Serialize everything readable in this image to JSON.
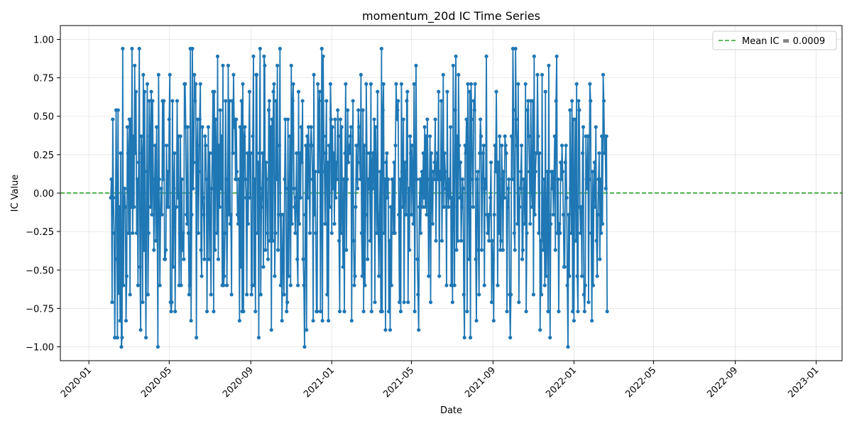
{
  "chart_data": {
    "type": "line",
    "title": "momentum_20d IC Time Series",
    "xlabel": "Date",
    "ylabel": "IC Value",
    "x_range": [
      "2019-11-19",
      "2023-02-09"
    ],
    "ylim": [
      -1.09,
      1.09
    ],
    "grid": true,
    "legend_position": "top-right",
    "x_ticks": [
      "2020-01",
      "2020-05",
      "2020-09",
      "2021-01",
      "2021-05",
      "2021-09",
      "2022-01",
      "2022-05",
      "2022-09",
      "2023-01"
    ],
    "y_ticks": [
      1.0,
      0.75,
      0.5,
      0.25,
      0.0,
      -0.25,
      -0.5,
      -0.75,
      -1.0
    ],
    "y_tick_labels": [
      "1.00",
      "0.75",
      "0.50",
      "0.25",
      "0.00",
      "−0.25",
      "−0.50",
      "−0.75",
      "−1.00"
    ],
    "series_color": "#1f77b4",
    "mean_line": {
      "label": "Mean IC = 0.0009",
      "value": 0.0009,
      "color": "#2ca02c"
    },
    "series": [
      {
        "start_date": "2020-02-03",
        "frequency": "daily",
        "values": [
          -0.03,
          0.09,
          -0.71,
          0.48,
          -0.03,
          -0.26,
          -0.94,
          -0.43,
          0.54,
          0.03,
          -0.94,
          0.54,
          -0.65,
          -0.09,
          -0.83,
          0.26,
          -1.0,
          -0.94,
          0.94,
          -0.6,
          -0.09,
          0.03,
          -0.09,
          -0.83,
          -0.54,
          0.43,
          0.26,
          -0.26,
          0.48,
          -0.66,
          0.48,
          -0.09,
          0.94,
          -0.26,
          0.37,
          -0.09,
          0.83,
          0.26,
          0.66,
          -0.26,
          0.09,
          -0.6,
          0.2,
          0.94,
          -0.48,
          -0.89,
          0.37,
          0.26,
          -0.71,
          0.77,
          -0.37,
          0.66,
          -0.37,
          -0.94,
          0.14,
          0.71,
          -0.66,
          -0.26,
          0.6,
          0.37,
          -0.09,
          0.66,
          -0.14,
          0.6,
          0.09,
          -0.37,
          0.03,
          0.31,
          -0.31,
          0.43,
          -0.14,
          -1.0,
          0.77,
          0.09,
          -0.6,
          -0.14,
          0.03,
          -0.14,
          0.6,
          0.09,
          0.6,
          -0.43,
          -0.43,
          -0.37,
          0.31,
          -0.09,
          0.14,
          -0.09,
          0.48,
          0.77,
          -0.71,
          -0.77,
          -0.71,
          0.6,
          -0.48,
          0.03,
          0.26,
          -0.77,
          -0.09,
          -0.09,
          0.6,
          -0.03,
          0.37,
          -0.6,
          -0.26,
          0.37,
          -0.6,
          0.09,
          -0.37,
          -0.26,
          -0.43,
          0.71,
          0.71,
          0.43,
          -0.14,
          -0.2,
          0.43,
          -0.26,
          -0.66,
          -0.6,
          0.94,
          -0.83,
          -0.14,
          0.94,
          0.03,
          0.2,
          0.77,
          0.6,
          0.71,
          -0.94,
          0.31,
          0.48,
          -0.26,
          0.14,
          0.48,
          0.71,
          -0.37,
          -0.54,
          0.43,
          -0.03,
          -0.14,
          -0.43,
          0.37,
          0.31,
          0.09,
          -0.77,
          -0.03,
          0.43,
          -0.43,
          0.26,
          -0.14,
          -0.66,
          0.03,
          0.26,
          0.66,
          -0.77,
          0.66,
          -0.37,
          0.48,
          0.2,
          -0.26,
          0.89,
          -0.43,
          0.31,
          -0.09,
          0.54,
          0.03,
          0.37,
          -0.6,
          0.83,
          -0.6,
          -0.54,
          -0.26,
          0.6,
          0.09,
          -0.6,
          -0.14,
          0.83,
          -0.14,
          0.6,
          -0.2,
          -0.14,
          -0.66,
          0.6,
          0.26,
          0.77,
          0.43,
          0.48,
          0.09,
          0.48,
          0.14,
          -0.14,
          -0.2,
          0.09,
          -0.83,
          0.43,
          -0.48,
          0.6,
          -0.77,
          0.71,
          -0.77,
          0.37,
          0.43,
          0.09,
          -0.03,
          -0.66,
          0.26,
          -0.2,
          0.26,
          0.66,
          -0.03,
          0.26,
          -0.66,
          -0.6,
          0.37,
          0.89,
          -0.6,
          0.09,
          -0.77,
          0.77,
          0.77,
          -0.26,
          0.2,
          -0.94,
          0.26,
          0.94,
          -0.66,
          -0.09,
          0.03,
          0.26,
          -0.48,
          0.89,
          0.83,
          -0.37,
          0.2,
          0.09,
          -0.26,
          -0.43,
          0.54,
          0.6,
          -0.31,
          0.43,
          -0.89,
          0.48,
          -0.31,
          0.66,
          0.71,
          -0.54,
          -0.26,
          0.6,
          0.09,
          0.83,
          -0.37,
          -0.14,
          0.31,
          0.94,
          -0.6,
          -0.14,
          -0.83,
          -0.43,
          -0.14,
          -0.66,
          0.09,
          0.48,
          0.03,
          -0.77,
          -0.71,
          0.48,
          -0.54,
          -0.09,
          0.37,
          -0.6,
          0.83,
          -0.2,
          0.6,
          0.71,
          0.03,
          -0.09,
          -0.26,
          -0.03,
          0.26,
          -0.43,
          -0.6,
          0.66,
          -0.2,
          0.26,
          -0.03,
          0.43,
          0.2,
          0.6,
          -0.43,
          -0.6,
          -1.0,
          -0.14,
          0.31,
          -0.89,
          0.37,
          -0.03,
          0.43,
          0.14,
          -0.26,
          0.31,
          0.43,
          0.31,
          0.09,
          -0.83,
          0.77,
          -0.14,
          0.14,
          -0.26,
          -0.77,
          -0.77,
          0.71,
          0.14,
          0.6,
          0.66,
          -0.77,
          -0.09,
          0.94,
          -0.83,
          0.89,
          0.37,
          0.14,
          -0.2,
          0.26,
          0.6,
          -0.66,
          0.2,
          -0.83,
          0.31,
          -0.09,
          0.71,
          0.48,
          -0.26,
          0.43,
          0.03,
          0.26,
          -0.2,
          0.48,
          -0.03,
          0.2,
          0.09,
          0.54,
          0.37,
          -0.31,
          -0.77,
          0.48,
          -0.26,
          0.43,
          -0.14,
          -0.48,
          0.09,
          -0.77,
          0.26,
          0.71,
          -0.37,
          0.09,
          0.54,
          0.2,
          0.31,
          0.26,
          0.37,
          0.43,
          -0.83,
          0.09,
          0.6,
          -0.31,
          -0.6,
          -0.54,
          -0.09,
          0.31,
          0.09,
          0.03,
          0.54,
          0.43,
          0.2,
          0.09,
          0.77,
          -0.26,
          -0.54,
          0.54,
          -0.77,
          0.31,
          -0.6,
          -0.14,
          0.71,
          0.26,
          -0.43,
          0.09,
          0.03,
          0.26,
          -0.31,
          0.71,
          -0.77,
          0.2,
          0.26,
          0.03,
          0.48,
          -0.71,
          0.43,
          0.09,
          -0.26,
          0.66,
          -0.2,
          -0.54,
          -0.14,
          0.14,
          -0.77,
          0.94,
          -0.77,
          0.54,
          0.71,
          -0.26,
          0.09,
          -0.89,
          0.2,
          0.26,
          -0.03,
          0.09,
          -0.77,
          -0.31,
          -0.89,
          -0.09,
          -0.6,
          0.09,
          0.09,
          -0.26,
          0.2,
          -0.26,
          0.31,
          0.71,
          0.48,
          0.54,
          0.6,
          -0.14,
          -0.71,
          0.09,
          -0.77,
          0.71,
          0.14,
          -0.09,
          0.48,
          -0.71,
          0.2,
          0.09,
          -0.14,
          0.6,
          0.66,
          -0.71,
          0.03,
          -0.37,
          0.37,
          0.26,
          -0.14,
          0.31,
          0.09,
          -0.2,
          0.71,
          -0.77,
          0.14,
          0.83,
          0.09,
          -0.43,
          -0.66,
          -0.89,
          -0.09,
          0.09,
          -0.26,
          0.09,
          0.14,
          -0.09,
          0.26,
          -0.03,
          0.43,
          -0.09,
          0.37,
          -0.14,
          0.48,
          0.09,
          -0.54,
          -0.09,
          0.37,
          -0.71,
          0.26,
          0.03,
          -0.2,
          0.14,
          0.09,
          0.2,
          0.48,
          -0.31,
          0.14,
          0.26,
          0.09,
          0.66,
          -0.54,
          0.14,
          0.09,
          0.6,
          -0.31,
          0.09,
          0.77,
          -0.09,
          0.26,
          0.14,
          0.03,
          -0.6,
          0.66,
          0.03,
          -0.09,
          0.09,
          -0.03,
          0.43,
          -0.6,
          -0.03,
          -0.71,
          0.83,
          -0.09,
          -0.6,
          0.54,
          0.89,
          -0.37,
          0.37,
          -0.31,
          0.77,
          0.31,
          -0.03,
          0.2,
          -0.31,
          -0.09,
          0.09,
          0.03,
          -0.66,
          -0.94,
          0.31,
          0.26,
          0.48,
          -0.77,
          0.71,
          0.09,
          -0.43,
          0.66,
          -0.94,
          0.71,
          0.48,
          0.09,
          -0.09,
          0.6,
          0.54,
          0.71,
          -0.43,
          -0.83,
          0.09,
          0.14,
          -0.37,
          -0.66,
          0.26,
          0.48,
          0.37,
          -0.37,
          0.03,
          0.26,
          0.31,
          -0.6,
          0.09,
          0.03,
          0.89,
          -0.14,
          -0.26,
          -0.14,
          -0.31,
          -0.14,
          -0.03,
          0.2,
          -0.71,
          -0.31,
          -0.43,
          -0.83,
          -0.14,
          0.31,
          0.14,
          0.66,
          0.14,
          -0.6,
          0.2,
          -0.26,
          0.37,
          -0.37,
          -0.31,
          0.31,
          0.09,
          -0.37,
          0.14,
          -0.03,
          0.37,
          0.31,
          0.26,
          -0.77,
          -0.09,
          0.03,
          0.09,
          -0.66,
          -0.94,
          -0.66,
          0.37,
          0.09,
          0.94,
          0.54,
          -0.26,
          -0.37,
          0.94,
          0.48,
          0.31,
          -0.2,
          0.71,
          -0.71,
          -0.09,
          0.03,
          0.14,
          0.31,
          -0.43,
          -0.37,
          0.09,
          0.03,
          -0.2,
          0.71,
          -0.77,
          -0.26,
          0.54,
          0.6,
          0.37,
          0.14,
          -0.2,
          0.6,
          0.03,
          -0.09,
          0.6,
          -0.66,
          0.89,
          -0.14,
          0.14,
          0.26,
          0.26,
          0.77,
          0.37,
          -0.26,
          0.26,
          -0.89,
          -0.31,
          -0.66,
          0.77,
          -0.26,
          -0.37,
          0.09,
          -0.6,
          0.66,
          -0.54,
          -0.26,
          0.14,
          -0.77,
          0.83,
          -0.14,
          -0.94,
          -0.2,
          0.14,
          0.03,
          0.14,
          -0.14,
          0.09,
          0.37,
          -0.37,
          0.6,
          0.89,
          -0.26,
          0.09,
          -0.77,
          -0.2,
          -0.26,
          0.2,
          0.09,
          0.31,
          0.14,
          -0.14,
          -0.48,
          -0.48,
          0.2,
          0.31,
          -0.03,
          -0.6,
          -1.0,
          -0.14,
          -0.54,
          0.54,
          0.03,
          -0.26,
          0.6,
          -0.77,
          0.48,
          -0.83,
          0.09,
          0.48,
          -0.31,
          0.71,
          -0.54,
          -0.77,
          0.6,
          0.54,
          -0.09,
          -0.26,
          -0.09,
          -0.54,
          0.26,
          0.43,
          -0.66,
          -0.77,
          -0.6,
          0.37,
          0.09,
          0.03,
          0.37,
          -0.71,
          0.09,
          0.71,
          0.6,
          -0.26,
          -0.83,
          0.14,
          -0.6,
          0.03,
          0.2,
          -0.09,
          0.43,
          -0.31,
          -0.54,
          -0.14,
          0.09,
          0.26,
          -0.43,
          0.09,
          -0.26,
          0.37,
          -0.2,
          0.77,
          0.6,
          0.26,
          0.37,
          0.03,
          0.37,
          -0.77
        ]
      }
    ]
  }
}
